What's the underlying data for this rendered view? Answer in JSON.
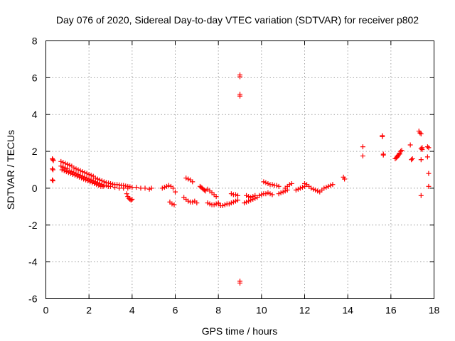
{
  "chart_data": {
    "type": "scatter",
    "title": "Day 076 of 2020, Sidereal Day-to-day VTEC variation (SDTVAR) for receiver p802",
    "xlabel": "GPS time / hours",
    "ylabel": "SDTVAR / TECUs",
    "xlim": [
      0,
      18
    ],
    "ylim": [
      -6,
      8
    ],
    "xticks": [
      0,
      2,
      4,
      6,
      8,
      10,
      12,
      14,
      16,
      18
    ],
    "yticks": [
      -6,
      -4,
      -2,
      0,
      2,
      4,
      6,
      8
    ],
    "grid": true,
    "marker": "+",
    "color": "#ff0000",
    "series": [
      {
        "name": "SDTVAR",
        "x": [
          0.3,
          0.32,
          0.35,
          0.3,
          0.33,
          0.3,
          0.33,
          0.7,
          0.8,
          0.9,
          1.0,
          1.1,
          1.2,
          1.3,
          1.4,
          1.5,
          1.6,
          1.7,
          1.8,
          1.9,
          2.0,
          2.1,
          2.2,
          2.3,
          2.4,
          2.5,
          2.6,
          2.7,
          2.8,
          2.9,
          3.0,
          3.1,
          3.2,
          3.3,
          3.4,
          3.5,
          3.6,
          3.7,
          3.8,
          3.9,
          4.0,
          4.2,
          4.4,
          4.6,
          4.8,
          4.9,
          0.7,
          0.8,
          0.9,
          1.0,
          1.1,
          1.2,
          1.3,
          1.4,
          1.5,
          1.6,
          1.7,
          1.8,
          1.9,
          2.0,
          2.1,
          2.2,
          2.3,
          2.4,
          2.5,
          2.6,
          2.7,
          2.8,
          2.9,
          3.0,
          3.2,
          3.4,
          3.6,
          3.8,
          0.75,
          0.85,
          0.95,
          1.05,
          1.15,
          1.25,
          1.35,
          1.45,
          1.55,
          1.65,
          1.75,
          1.85,
          1.95,
          2.05,
          2.15,
          2.25,
          2.35,
          2.45,
          2.55,
          2.65,
          3.75,
          3.8,
          3.85,
          3.9,
          3.95,
          4.0,
          5.4,
          5.5,
          5.6,
          5.7,
          5.8,
          5.9,
          6.0,
          5.75,
          5.85,
          5.95,
          6.5,
          6.6,
          6.7,
          6.8,
          6.4,
          6.5,
          6.6,
          6.7,
          6.8,
          6.9,
          7.0,
          7.15,
          7.2,
          7.25,
          7.3,
          7.35,
          7.4,
          7.5,
          7.6,
          7.7,
          7.8,
          7.9,
          7.5,
          7.6,
          7.7,
          7.8,
          7.9,
          8.0,
          8.0,
          8.1,
          8.2,
          8.3,
          8.4,
          8.5,
          8.6,
          8.7,
          8.8,
          8.9,
          8.6,
          8.7,
          8.8,
          8.9,
          9.0,
          9.0,
          9.0,
          9.0,
          9.0,
          9.0,
          9.2,
          9.3,
          9.4,
          9.5,
          9.6,
          9.7,
          9.8,
          9.3,
          9.4,
          9.5,
          9.6,
          9.7,
          9.9,
          10.0,
          10.1,
          10.2,
          10.3,
          10.4,
          10.5,
          10.1,
          10.2,
          10.3,
          10.4,
          10.5,
          10.6,
          10.7,
          10.8,
          10.8,
          10.9,
          11.0,
          11.1,
          11.2,
          11.1,
          11.2,
          11.3,
          11.4,
          11.6,
          11.7,
          11.8,
          11.9,
          12.0,
          12.0,
          12.1,
          12.2,
          12.3,
          12.4,
          12.5,
          12.6,
          12.7,
          12.8,
          12.9,
          13.0,
          13.1,
          13.2,
          13.3,
          13.8,
          13.85,
          14.7,
          14.7,
          15.6,
          15.6,
          15.65,
          15.65,
          16.2,
          16.25,
          16.3,
          16.35,
          16.4,
          16.45,
          16.5,
          16.3,
          16.4,
          16.9,
          16.95,
          17.0,
          17.3,
          17.35,
          17.4,
          17.45,
          17.4,
          17.45,
          17.4,
          17.4,
          17.7,
          17.75,
          17.7,
          17.75,
          17.75
        ],
        "y": [
          1.6,
          1.55,
          1.5,
          1.05,
          1.0,
          0.45,
          0.4,
          1.45,
          1.4,
          1.35,
          1.3,
          1.25,
          1.2,
          1.1,
          1.05,
          1.0,
          0.95,
          0.9,
          0.85,
          0.8,
          0.75,
          0.7,
          0.65,
          0.55,
          0.5,
          0.45,
          0.4,
          0.35,
          0.3,
          0.28,
          0.25,
          0.22,
          0.2,
          0.2,
          0.18,
          0.15,
          0.15,
          0.12,
          0.1,
          0.08,
          0.05,
          0.05,
          0.0,
          0.0,
          -0.05,
          0.0,
          1.2,
          1.15,
          1.1,
          1.05,
          0.95,
          0.9,
          0.85,
          0.8,
          0.75,
          0.7,
          0.65,
          0.6,
          0.55,
          0.5,
          0.45,
          0.4,
          0.35,
          0.3,
          0.25,
          0.2,
          0.15,
          0.15,
          0.1,
          0.1,
          0.05,
          0.0,
          0.0,
          0.0,
          1.0,
          0.95,
          0.9,
          0.85,
          0.8,
          0.75,
          0.7,
          0.65,
          0.6,
          0.55,
          0.5,
          0.45,
          0.4,
          0.35,
          0.3,
          0.25,
          0.2,
          0.15,
          0.1,
          0.1,
          -0.3,
          -0.45,
          -0.55,
          -0.6,
          -0.65,
          -0.6,
          0.0,
          0.05,
          0.1,
          0.15,
          0.1,
          0.0,
          -0.2,
          -0.75,
          -0.85,
          -0.9,
          0.55,
          0.5,
          0.45,
          0.35,
          -0.5,
          -0.6,
          -0.7,
          -0.75,
          -0.75,
          -0.7,
          -0.8,
          0.1,
          0.05,
          0.0,
          -0.05,
          -0.1,
          -0.15,
          -0.05,
          -0.15,
          -0.25,
          -0.35,
          -0.45,
          -0.8,
          -0.85,
          -0.9,
          -0.9,
          -0.85,
          -0.8,
          -0.85,
          -0.95,
          -0.95,
          -0.9,
          -0.85,
          -0.85,
          -0.8,
          -0.75,
          -0.7,
          -0.65,
          -0.3,
          -0.35,
          -0.35,
          -0.4,
          6.15,
          6.05,
          5.1,
          5.0,
          -5.05,
          -5.15,
          -0.8,
          -0.75,
          -0.7,
          -0.65,
          -0.6,
          -0.55,
          -0.5,
          -0.4,
          -0.45,
          -0.5,
          -0.45,
          -0.4,
          -0.4,
          -0.35,
          -0.3,
          -0.3,
          -0.25,
          -0.3,
          -0.35,
          0.35,
          0.3,
          0.25,
          0.2,
          0.2,
          0.15,
          0.15,
          0.1,
          -0.3,
          -0.25,
          -0.2,
          -0.15,
          -0.1,
          0.0,
          0.1,
          0.2,
          0.25,
          -0.1,
          -0.05,
          0.0,
          0.05,
          0.1,
          0.25,
          0.2,
          0.1,
          0.0,
          -0.05,
          -0.1,
          -0.15,
          -0.2,
          -0.1,
          0.0,
          0.05,
          0.1,
          0.15,
          0.2,
          0.6,
          0.5,
          2.25,
          1.75,
          2.8,
          2.85,
          1.85,
          1.8,
          1.6,
          1.65,
          1.7,
          1.8,
          1.9,
          2.0,
          2.05,
          1.75,
          1.85,
          2.35,
          1.55,
          1.6,
          3.1,
          3.0,
          2.95,
          2.2,
          2.15,
          2.1,
          1.55,
          -0.4,
          2.25,
          2.2,
          1.7,
          0.8,
          0.1
        ]
      }
    ]
  }
}
